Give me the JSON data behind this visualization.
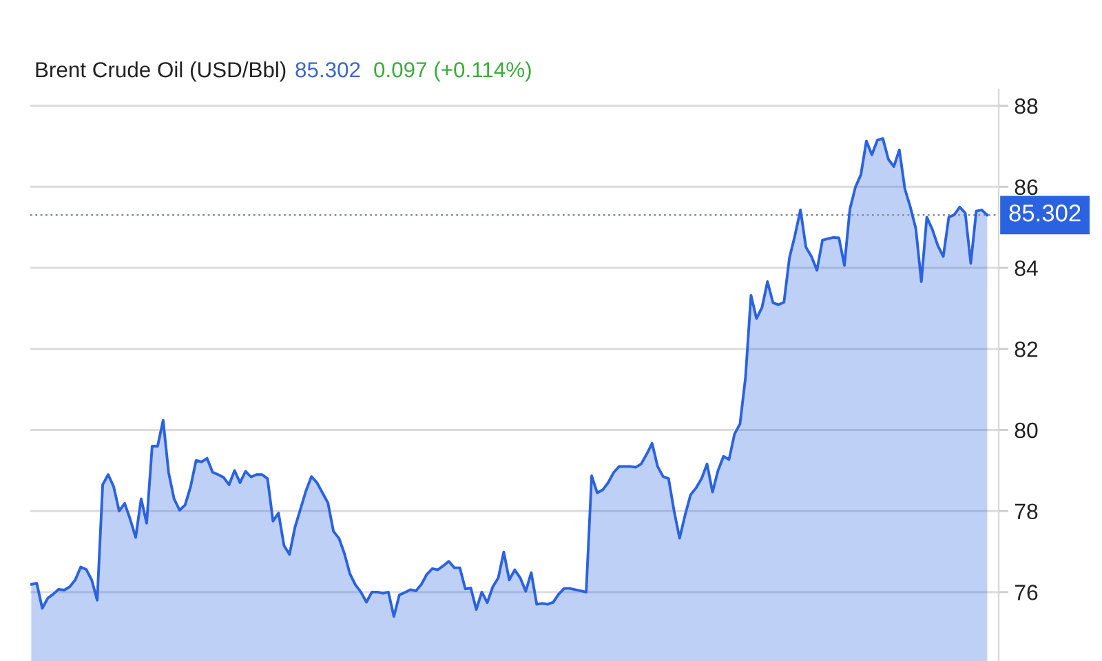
{
  "chart_data": {
    "type": "area",
    "title": "Brent Crude Oil (USD/Bbl)",
    "annotations": [
      "85.302",
      "0.097 (+0.114%)"
    ],
    "categories": [
      null,
      null,
      null,
      null,
      null,
      null,
      null,
      null,
      null,
      null,
      null,
      null,
      null,
      null,
      null,
      null,
      null,
      null,
      null,
      null,
      null,
      null,
      null,
      null,
      null,
      null,
      null,
      null,
      null,
      null,
      null,
      null,
      null,
      null,
      null,
      null,
      null,
      null,
      null,
      null,
      null,
      null,
      null,
      null,
      null,
      null,
      null,
      null,
      null,
      null,
      null,
      null,
      null,
      null,
      null,
      null,
      null,
      null,
      null,
      null,
      null,
      null,
      null,
      null,
      null,
      null,
      null,
      null,
      null,
      null,
      null,
      null,
      null,
      null,
      null,
      null,
      null,
      null,
      null,
      null,
      null,
      null,
      null,
      null,
      null,
      null,
      null,
      null,
      null,
      null,
      null,
      null,
      null,
      null,
      null,
      null,
      null,
      null,
      null,
      null,
      null,
      null,
      null,
      null,
      null,
      null,
      null,
      null,
      null,
      null,
      null,
      null,
      null,
      null,
      null,
      null,
      null,
      null,
      null,
      null,
      null,
      null,
      null,
      null,
      null,
      null,
      null,
      null,
      null,
      null,
      null,
      null,
      null,
      null,
      null,
      null,
      null,
      null,
      null,
      null,
      null,
      null,
      null,
      null,
      null,
      null,
      null,
      null,
      null,
      null,
      null,
      null,
      null,
      null,
      null,
      null,
      null,
      null,
      null,
      null,
      null,
      null,
      null,
      null,
      null,
      null,
      null,
      null,
      null,
      null,
      null,
      null,
      null,
      null,
      null
    ],
    "series": [
      {
        "color": "#2a62e0",
        "values": [
          76.19,
          76.22,
          75.6,
          75.85,
          75.95,
          76.07,
          76.05,
          76.13,
          76.3,
          76.62,
          76.56,
          76.3,
          75.8,
          78.65,
          78.9,
          78.6,
          78.0,
          78.19,
          77.8,
          77.35,
          78.3,
          77.7,
          79.6,
          79.6,
          80.24,
          78.95,
          78.3,
          78.02,
          78.15,
          78.6,
          79.25,
          79.21,
          79.3,
          78.96,
          78.9,
          78.83,
          78.65,
          79.0,
          78.7,
          78.98,
          78.84,
          78.9,
          78.9,
          78.8,
          77.75,
          77.95,
          77.15,
          76.93,
          77.6,
          78.05,
          78.5,
          78.85,
          78.7,
          78.45,
          78.2,
          77.5,
          77.33,
          76.95,
          76.45,
          76.18,
          76.0,
          75.75,
          76.0,
          76.0,
          75.97,
          76.0,
          75.4,
          75.93,
          75.99,
          76.06,
          76.03,
          76.19,
          76.44,
          76.58,
          76.55,
          76.65,
          76.76,
          76.6,
          76.6,
          76.08,
          76.1,
          75.57,
          76.0,
          75.74,
          76.13,
          76.35,
          76.99,
          76.3,
          76.55,
          76.35,
          76.02,
          76.48,
          75.7,
          75.72,
          75.7,
          75.75,
          75.95,
          76.09,
          76.09,
          76.06,
          76.03,
          76.0,
          78.87,
          78.45,
          78.52,
          78.7,
          78.95,
          79.1,
          79.1,
          79.1,
          79.08,
          79.16,
          79.4,
          79.67,
          79.1,
          78.85,
          78.8,
          78.0,
          77.33,
          77.9,
          78.4,
          78.57,
          78.8,
          79.16,
          78.47,
          79.0,
          79.35,
          79.27,
          79.9,
          80.15,
          81.3,
          83.32,
          82.75,
          83.02,
          83.66,
          83.14,
          83.09,
          83.15,
          84.25,
          84.8,
          85.43,
          84.51,
          84.28,
          83.94,
          84.68,
          84.72,
          84.75,
          84.74,
          84.06,
          85.45,
          85.99,
          86.3,
          87.13,
          86.79,
          87.15,
          87.19,
          86.68,
          86.5,
          86.91,
          85.95,
          85.5,
          84.97,
          83.66,
          85.25,
          84.95,
          84.55,
          84.28,
          85.25,
          85.31,
          85.5,
          85.35,
          84.11,
          85.4,
          85.43,
          85.3
        ]
      }
    ],
    "ylim": [
      74.3,
      88.4
    ],
    "yticks": [
      76,
      78,
      80,
      82,
      84,
      86,
      88
    ],
    "grid": "y",
    "ref_lines": [
      {
        "axis": "y",
        "value": 85.302,
        "label": "85.302",
        "color": "#8c93aa",
        "line_style": "dotted"
      }
    ]
  }
}
